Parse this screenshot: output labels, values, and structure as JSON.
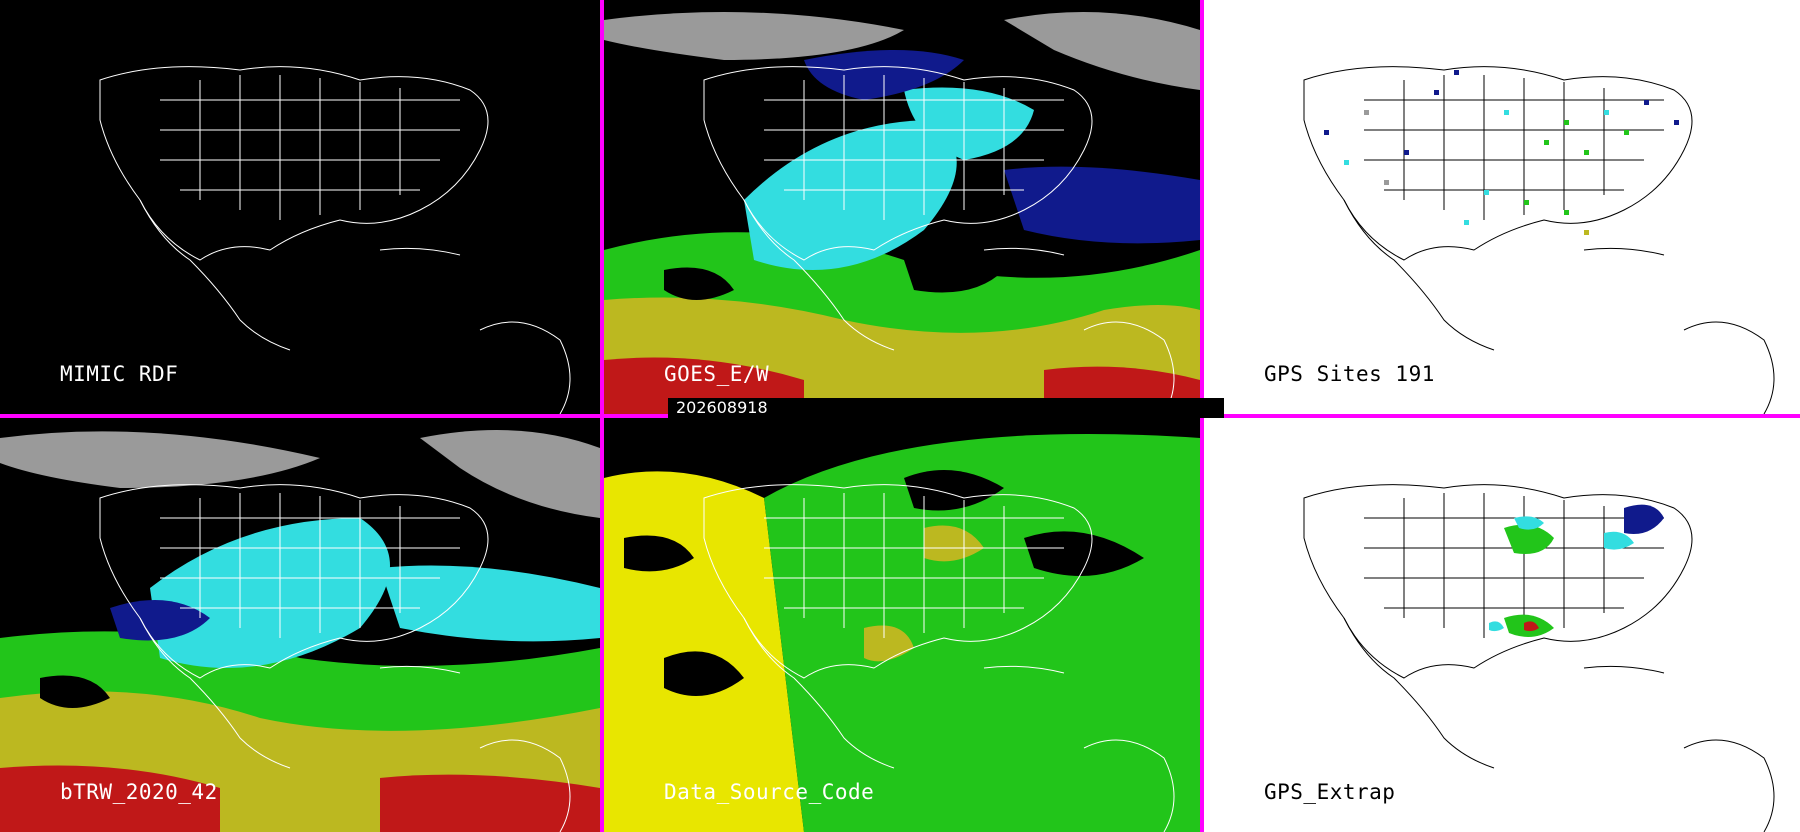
{
  "timestamp": "202608918",
  "panels": [
    {
      "id": "mimic",
      "label": "MIMIC RDF",
      "theme": "dark"
    },
    {
      "id": "goes",
      "label": "GOES_E/W",
      "theme": "dark"
    },
    {
      "id": "gps",
      "label": "GPS Sites    191",
      "theme": "light"
    },
    {
      "id": "btrw",
      "label": "bTRW_2020_42",
      "theme": "dark"
    },
    {
      "id": "source",
      "label": "Data_Source_Code",
      "theme": "dark"
    },
    {
      "id": "extrap",
      "label": "GPS_Extrap",
      "theme": "light"
    }
  ],
  "colors": {
    "divider": "#ff00ff",
    "gray": "#9a9a9a",
    "navy": "#101a8c",
    "cyan": "#33dde0",
    "green": "#22c51a",
    "olive": "#bcb820",
    "yellow": "#e8e600",
    "red": "#c01818"
  }
}
